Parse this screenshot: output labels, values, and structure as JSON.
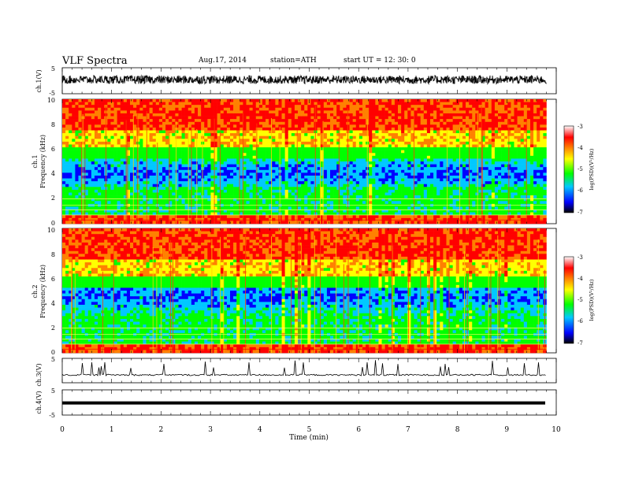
{
  "header": {
    "title": "VLF  Spectra",
    "date": "Aug.17, 2014",
    "station": "station=ATH",
    "start": "start  UT =   12: 30: 0"
  },
  "chart_data": [
    {
      "type": "line",
      "panel": "ch1-waveform",
      "ylabel": "ch.1(V)",
      "ylim": [
        -5,
        5
      ],
      "yticks": [
        "5",
        "-5"
      ],
      "xlim": [
        0,
        10
      ],
      "level": 0.4,
      "amplitude": 1.6
    },
    {
      "type": "heatmap",
      "panel": "ch1-spectrogram",
      "ylabel_channel": "ch.1",
      "ylabel": "Frequency  (kHz)",
      "yticks": [
        "0",
        "2",
        "4",
        "6",
        "8",
        "10"
      ],
      "ylim": [
        0,
        10
      ],
      "xlim": [
        0,
        9.8
      ],
      "colorbar": {
        "label": "log(PSD)(V²/Hz)",
        "ticks": [
          "-3",
          "-4",
          "-5",
          "-6",
          "-7"
        ],
        "range": [
          -7,
          -3
        ]
      }
    },
    {
      "type": "heatmap",
      "panel": "ch2-spectrogram",
      "ylabel_channel": "ch.2",
      "ylabel": "Frequency  (kHz)",
      "yticks": [
        "0",
        "2",
        "4",
        "6",
        "8",
        "10"
      ],
      "ylim": [
        0,
        10
      ],
      "xlim": [
        0,
        9.8
      ],
      "colorbar": {
        "label": "log(PSD)(V²/Hz)",
        "ticks": [
          "-3",
          "-4",
          "-5",
          "-6",
          "-7"
        ],
        "range": [
          -7,
          -3
        ]
      }
    },
    {
      "type": "line",
      "panel": "ch3-waveform",
      "ylabel": "ch.3(V)",
      "ylim": [
        -5,
        5
      ],
      "yticks": [
        "5"
      ],
      "xlim": [
        0,
        10
      ]
    },
    {
      "type": "line",
      "panel": "ch4-waveform",
      "ylabel": "ch.4(V)",
      "ylim": [
        -5,
        5
      ],
      "yticks": [
        "5",
        "-5"
      ],
      "xlim": [
        0,
        10
      ],
      "level": -0.2
    }
  ],
  "xaxis": {
    "label": "Time  (min)",
    "ticks": [
      "0",
      "1",
      "2",
      "3",
      "4",
      "5",
      "6",
      "7",
      "8",
      "9",
      "10"
    ]
  },
  "colors": {
    "colormap": [
      "#000000",
      "#0000ff",
      "#00c8ff",
      "#00ff00",
      "#ffff00",
      "#ff8000",
      "#ff0000",
      "#ffffff"
    ]
  }
}
